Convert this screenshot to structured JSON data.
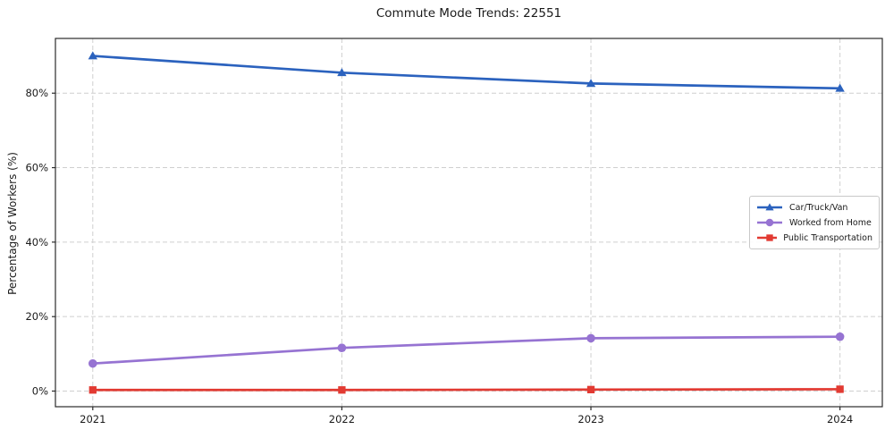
{
  "chart_data": {
    "type": "line",
    "title": "Commute Mode Trends: 22551",
    "xlabel": "",
    "ylabel": "Percentage of Workers (%)",
    "x": [
      2021,
      2022,
      2023,
      2024
    ],
    "x_tick_labels": [
      "2021",
      "2022",
      "2023",
      "2024"
    ],
    "y_ticks": [
      0,
      20,
      40,
      60,
      80
    ],
    "y_tick_labels": [
      "0%",
      "20%",
      "40%",
      "60%",
      "80%"
    ],
    "xlim": [
      2020.85,
      2024.17
    ],
    "ylim": [
      -4.2,
      94.7
    ],
    "grid": true,
    "grid_style": "dashed",
    "legend_position": "center right",
    "series": [
      {
        "name": "Car/Truck/Van",
        "values": [
          90.0,
          85.5,
          82.6,
          81.3
        ],
        "color": "#2b62be",
        "marker": "triangle-up"
      },
      {
        "name": "Worked from Home",
        "values": [
          7.4,
          11.6,
          14.2,
          14.6
        ],
        "color": "#9673d2",
        "marker": "circle"
      },
      {
        "name": "Public Transportation",
        "values": [
          0.3,
          0.3,
          0.4,
          0.5
        ],
        "color": "#e23a32",
        "marker": "square"
      }
    ]
  }
}
